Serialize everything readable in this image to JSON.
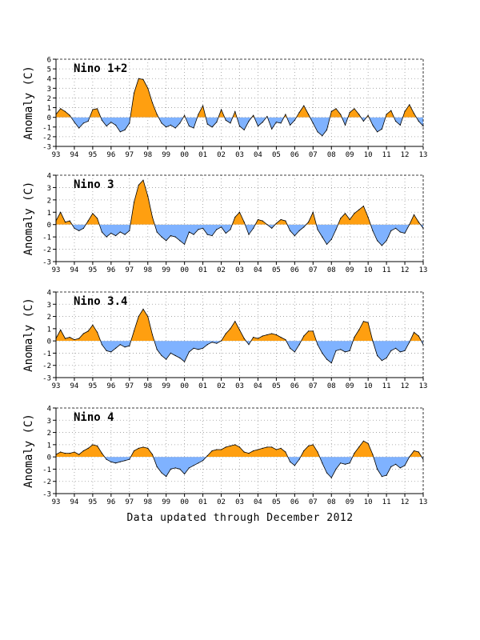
{
  "footer": "Data updated through December 2012",
  "colors": {
    "positive": "#ff9f10",
    "negative": "#7fb2ff",
    "line": "#000000",
    "grid": "#999999"
  },
  "chart_data": [
    {
      "type": "area",
      "title": "Nino 1+2",
      "ylabel": "Anomaly (C)",
      "ylim": [
        -3,
        6
      ],
      "yticks": [
        -3,
        -2,
        -1,
        0,
        1,
        2,
        3,
        4,
        5,
        6
      ],
      "xlim": [
        1993,
        2013
      ],
      "xticks": [
        "93",
        "94",
        "95",
        "96",
        "97",
        "98",
        "99",
        "00",
        "01",
        "02",
        "03",
        "04",
        "05",
        "06",
        "07",
        "08",
        "09",
        "10",
        "11",
        "12",
        "13"
      ],
      "grid": true,
      "x": [
        1993.0,
        1993.25,
        1993.5,
        1993.75,
        1994.0,
        1994.25,
        1994.5,
        1994.75,
        1995.0,
        1995.25,
        1995.5,
        1995.75,
        1996.0,
        1996.25,
        1996.5,
        1996.75,
        1997.0,
        1997.25,
        1997.5,
        1997.75,
        1998.0,
        1998.25,
        1998.5,
        1998.75,
        1999.0,
        1999.25,
        1999.5,
        1999.75,
        2000.0,
        2000.25,
        2000.5,
        2000.75,
        2001.0,
        2001.25,
        2001.5,
        2001.75,
        2002.0,
        2002.25,
        2002.5,
        2002.75,
        2003.0,
        2003.25,
        2003.5,
        2003.75,
        2004.0,
        2004.25,
        2004.5,
        2004.75,
        2005.0,
        2005.25,
        2005.5,
        2005.75,
        2006.0,
        2006.25,
        2006.5,
        2006.75,
        2007.0,
        2007.25,
        2007.5,
        2007.75,
        2008.0,
        2008.25,
        2008.5,
        2008.75,
        2009.0,
        2009.25,
        2009.5,
        2009.75,
        2010.0,
        2010.25,
        2010.5,
        2010.75,
        2011.0,
        2011.25,
        2011.5,
        2011.75,
        2012.0,
        2012.25,
        2012.5,
        2012.75,
        2013.0
      ],
      "values": [
        0.3,
        0.9,
        0.6,
        0.2,
        -0.5,
        -1.1,
        -0.6,
        -0.4,
        0.8,
        0.9,
        -0.3,
        -0.9,
        -0.5,
        -0.8,
        -1.5,
        -1.3,
        -0.6,
        2.5,
        4.0,
        3.9,
        3.0,
        1.5,
        0.3,
        -0.6,
        -1.0,
        -0.8,
        -1.1,
        -0.6,
        0.2,
        -0.9,
        -1.1,
        0.3,
        1.2,
        -0.7,
        -1.0,
        -0.5,
        0.8,
        -0.3,
        -0.6,
        0.6,
        -0.9,
        -1.3,
        -0.4,
        0.2,
        -0.9,
        -0.5,
        0.1,
        -1.2,
        -0.5,
        -0.6,
        0.3,
        -0.8,
        -0.3,
        0.5,
        1.2,
        0.3,
        -0.6,
        -1.5,
        -1.9,
        -1.3,
        0.6,
        0.9,
        0.3,
        -0.8,
        0.5,
        0.9,
        0.3,
        -0.4,
        0.2,
        -0.8,
        -1.5,
        -1.2,
        0.3,
        0.7,
        -0.4,
        -0.8,
        0.6,
        1.3,
        0.4,
        -0.4,
        -0.9
      ]
    },
    {
      "type": "area",
      "title": "Nino 3",
      "ylabel": "Anomaly (C)",
      "ylim": [
        -3,
        4
      ],
      "yticks": [
        -3,
        -2,
        -1,
        0,
        1,
        2,
        3,
        4
      ],
      "xlim": [
        1993,
        2013
      ],
      "xticks": [
        "93",
        "94",
        "95",
        "96",
        "97",
        "98",
        "99",
        "00",
        "01",
        "02",
        "03",
        "04",
        "05",
        "06",
        "07",
        "08",
        "09",
        "10",
        "11",
        "12",
        "13"
      ],
      "grid": true,
      "x": [
        1993.0,
        1993.25,
        1993.5,
        1993.75,
        1994.0,
        1994.25,
        1994.5,
        1994.75,
        1995.0,
        1995.25,
        1995.5,
        1995.75,
        1996.0,
        1996.25,
        1996.5,
        1996.75,
        1997.0,
        1997.25,
        1997.5,
        1997.75,
        1998.0,
        1998.25,
        1998.5,
        1998.75,
        1999.0,
        1999.25,
        1999.5,
        1999.75,
        2000.0,
        2000.25,
        2000.5,
        2000.75,
        2001.0,
        2001.25,
        2001.5,
        2001.75,
        2002.0,
        2002.25,
        2002.5,
        2002.75,
        2003.0,
        2003.25,
        2003.5,
        2003.75,
        2004.0,
        2004.25,
        2004.5,
        2004.75,
        2005.0,
        2005.25,
        2005.5,
        2005.75,
        2006.0,
        2006.25,
        2006.5,
        2006.75,
        2007.0,
        2007.25,
        2007.5,
        2007.75,
        2008.0,
        2008.25,
        2008.5,
        2008.75,
        2009.0,
        2009.25,
        2009.5,
        2009.75,
        2010.0,
        2010.25,
        2010.5,
        2010.75,
        2011.0,
        2011.25,
        2011.5,
        2011.75,
        2012.0,
        2012.25,
        2012.5,
        2012.75,
        2013.0
      ],
      "values": [
        0.3,
        1.0,
        0.2,
        0.3,
        -0.3,
        -0.5,
        -0.3,
        0.3,
        0.9,
        0.5,
        -0.6,
        -1.0,
        -0.7,
        -0.9,
        -0.6,
        -0.8,
        -0.5,
        1.8,
        3.2,
        3.6,
        2.3,
        0.6,
        -0.6,
        -1.0,
        -1.3,
        -0.9,
        -1.0,
        -1.3,
        -1.6,
        -0.6,
        -0.8,
        -0.4,
        -0.3,
        -0.8,
        -0.9,
        -0.4,
        -0.2,
        -0.7,
        -0.4,
        0.6,
        1.0,
        0.2,
        -0.8,
        -0.3,
        0.4,
        0.3,
        0.0,
        -0.3,
        0.1,
        0.4,
        0.3,
        -0.5,
        -0.9,
        -0.5,
        -0.2,
        0.2,
        1.0,
        -0.4,
        -1.0,
        -1.6,
        -1.2,
        -0.4,
        0.5,
        0.9,
        0.4,
        0.9,
        1.2,
        1.5,
        0.6,
        -0.5,
        -1.3,
        -1.7,
        -1.3,
        -0.5,
        -0.3,
        -0.6,
        -0.7,
        0.0,
        0.8,
        0.2,
        -0.3
      ]
    },
    {
      "type": "area",
      "title": "Nino 3.4",
      "ylabel": "Anomaly (C)",
      "ylim": [
        -3,
        4
      ],
      "yticks": [
        -3,
        -2,
        -1,
        0,
        1,
        2,
        3,
        4
      ],
      "xlim": [
        1993,
        2013
      ],
      "xticks": [
        "93",
        "94",
        "95",
        "96",
        "97",
        "98",
        "99",
        "00",
        "01",
        "02",
        "03",
        "04",
        "05",
        "06",
        "07",
        "08",
        "09",
        "10",
        "11",
        "12",
        "13"
      ],
      "grid": true,
      "x": [
        1993.0,
        1993.25,
        1993.5,
        1993.75,
        1994.0,
        1994.25,
        1994.5,
        1994.75,
        1995.0,
        1995.25,
        1995.5,
        1995.75,
        1996.0,
        1996.25,
        1996.5,
        1996.75,
        1997.0,
        1997.25,
        1997.5,
        1997.75,
        1998.0,
        1998.25,
        1998.5,
        1998.75,
        1999.0,
        1999.25,
        1999.5,
        1999.75,
        2000.0,
        2000.25,
        2000.5,
        2000.75,
        2001.0,
        2001.25,
        2001.5,
        2001.75,
        2002.0,
        2002.25,
        2002.5,
        2002.75,
        2003.0,
        2003.25,
        2003.5,
        2003.75,
        2004.0,
        2004.25,
        2004.5,
        2004.75,
        2005.0,
        2005.25,
        2005.5,
        2005.75,
        2006.0,
        2006.25,
        2006.5,
        2006.75,
        2007.0,
        2007.25,
        2007.5,
        2007.75,
        2008.0,
        2008.25,
        2008.5,
        2008.75,
        2009.0,
        2009.25,
        2009.5,
        2009.75,
        2010.0,
        2010.25,
        2010.5,
        2010.75,
        2011.0,
        2011.25,
        2011.5,
        2011.75,
        2012.0,
        2012.25,
        2012.5,
        2012.75,
        2013.0
      ],
      "values": [
        0.2,
        0.9,
        0.2,
        0.3,
        0.1,
        0.2,
        0.6,
        0.8,
        1.3,
        0.7,
        -0.3,
        -0.8,
        -0.9,
        -0.6,
        -0.3,
        -0.5,
        -0.4,
        0.8,
        2.0,
        2.6,
        2.0,
        0.5,
        -0.7,
        -1.2,
        -1.5,
        -1.0,
        -1.2,
        -1.4,
        -1.7,
        -0.9,
        -0.6,
        -0.7,
        -0.6,
        -0.3,
        -0.1,
        -0.2,
        0.0,
        0.6,
        1.0,
        1.6,
        0.9,
        0.2,
        -0.3,
        0.3,
        0.2,
        0.4,
        0.5,
        0.6,
        0.5,
        0.3,
        0.1,
        -0.6,
        -0.9,
        -0.3,
        0.4,
        0.8,
        0.8,
        -0.3,
        -1.0,
        -1.5,
        -1.8,
        -0.8,
        -0.7,
        -0.9,
        -0.8,
        0.3,
        0.9,
        1.6,
        1.5,
        0.0,
        -1.2,
        -1.6,
        -1.4,
        -0.8,
        -0.6,
        -0.9,
        -0.8,
        -0.1,
        0.7,
        0.4,
        -0.3
      ]
    },
    {
      "type": "area",
      "title": "Nino 4",
      "ylabel": "Anomaly (C)",
      "ylim": [
        -3,
        4
      ],
      "yticks": [
        -3,
        -2,
        -1,
        0,
        1,
        2,
        3,
        4
      ],
      "xlim": [
        1993,
        2013
      ],
      "xticks": [
        "93",
        "94",
        "95",
        "96",
        "97",
        "98",
        "99",
        "00",
        "01",
        "02",
        "03",
        "04",
        "05",
        "06",
        "07",
        "08",
        "09",
        "10",
        "11",
        "12",
        "13"
      ],
      "grid": true,
      "x": [
        1993.0,
        1993.25,
        1993.5,
        1993.75,
        1994.0,
        1994.25,
        1994.5,
        1994.75,
        1995.0,
        1995.25,
        1995.5,
        1995.75,
        1996.0,
        1996.25,
        1996.5,
        1996.75,
        1997.0,
        1997.25,
        1997.5,
        1997.75,
        1998.0,
        1998.25,
        1998.5,
        1998.75,
        1999.0,
        1999.25,
        1999.5,
        1999.75,
        2000.0,
        2000.25,
        2000.5,
        2000.75,
        2001.0,
        2001.25,
        2001.5,
        2001.75,
        2002.0,
        2002.25,
        2002.5,
        2002.75,
        2003.0,
        2003.25,
        2003.5,
        2003.75,
        2004.0,
        2004.25,
        2004.5,
        2004.75,
        2005.0,
        2005.25,
        2005.5,
        2005.75,
        2006.0,
        2006.25,
        2006.5,
        2006.75,
        2007.0,
        2007.25,
        2007.5,
        2007.75,
        2008.0,
        2008.25,
        2008.5,
        2008.75,
        2009.0,
        2009.25,
        2009.5,
        2009.75,
        2010.0,
        2010.25,
        2010.5,
        2010.75,
        2011.0,
        2011.25,
        2011.5,
        2011.75,
        2012.0,
        2012.25,
        2012.5,
        2012.75,
        2013.0
      ],
      "values": [
        0.2,
        0.4,
        0.3,
        0.3,
        0.4,
        0.2,
        0.5,
        0.7,
        1.0,
        0.9,
        0.3,
        -0.2,
        -0.4,
        -0.5,
        -0.4,
        -0.3,
        -0.2,
        0.5,
        0.7,
        0.8,
        0.7,
        0.2,
        -0.8,
        -1.3,
        -1.6,
        -1.0,
        -0.9,
        -1.0,
        -1.4,
        -0.9,
        -0.7,
        -0.5,
        -0.3,
        0.1,
        0.5,
        0.6,
        0.6,
        0.8,
        0.9,
        1.0,
        0.8,
        0.4,
        0.3,
        0.5,
        0.6,
        0.7,
        0.8,
        0.8,
        0.6,
        0.7,
        0.4,
        -0.4,
        -0.7,
        -0.2,
        0.5,
        0.9,
        1.0,
        0.4,
        -0.5,
        -1.3,
        -1.7,
        -1.0,
        -0.5,
        -0.6,
        -0.5,
        0.3,
        0.8,
        1.3,
        1.1,
        0.2,
        -1.0,
        -1.6,
        -1.5,
        -0.8,
        -0.6,
        -0.9,
        -0.7,
        0.0,
        0.5,
        0.4,
        -0.2
      ]
    }
  ]
}
